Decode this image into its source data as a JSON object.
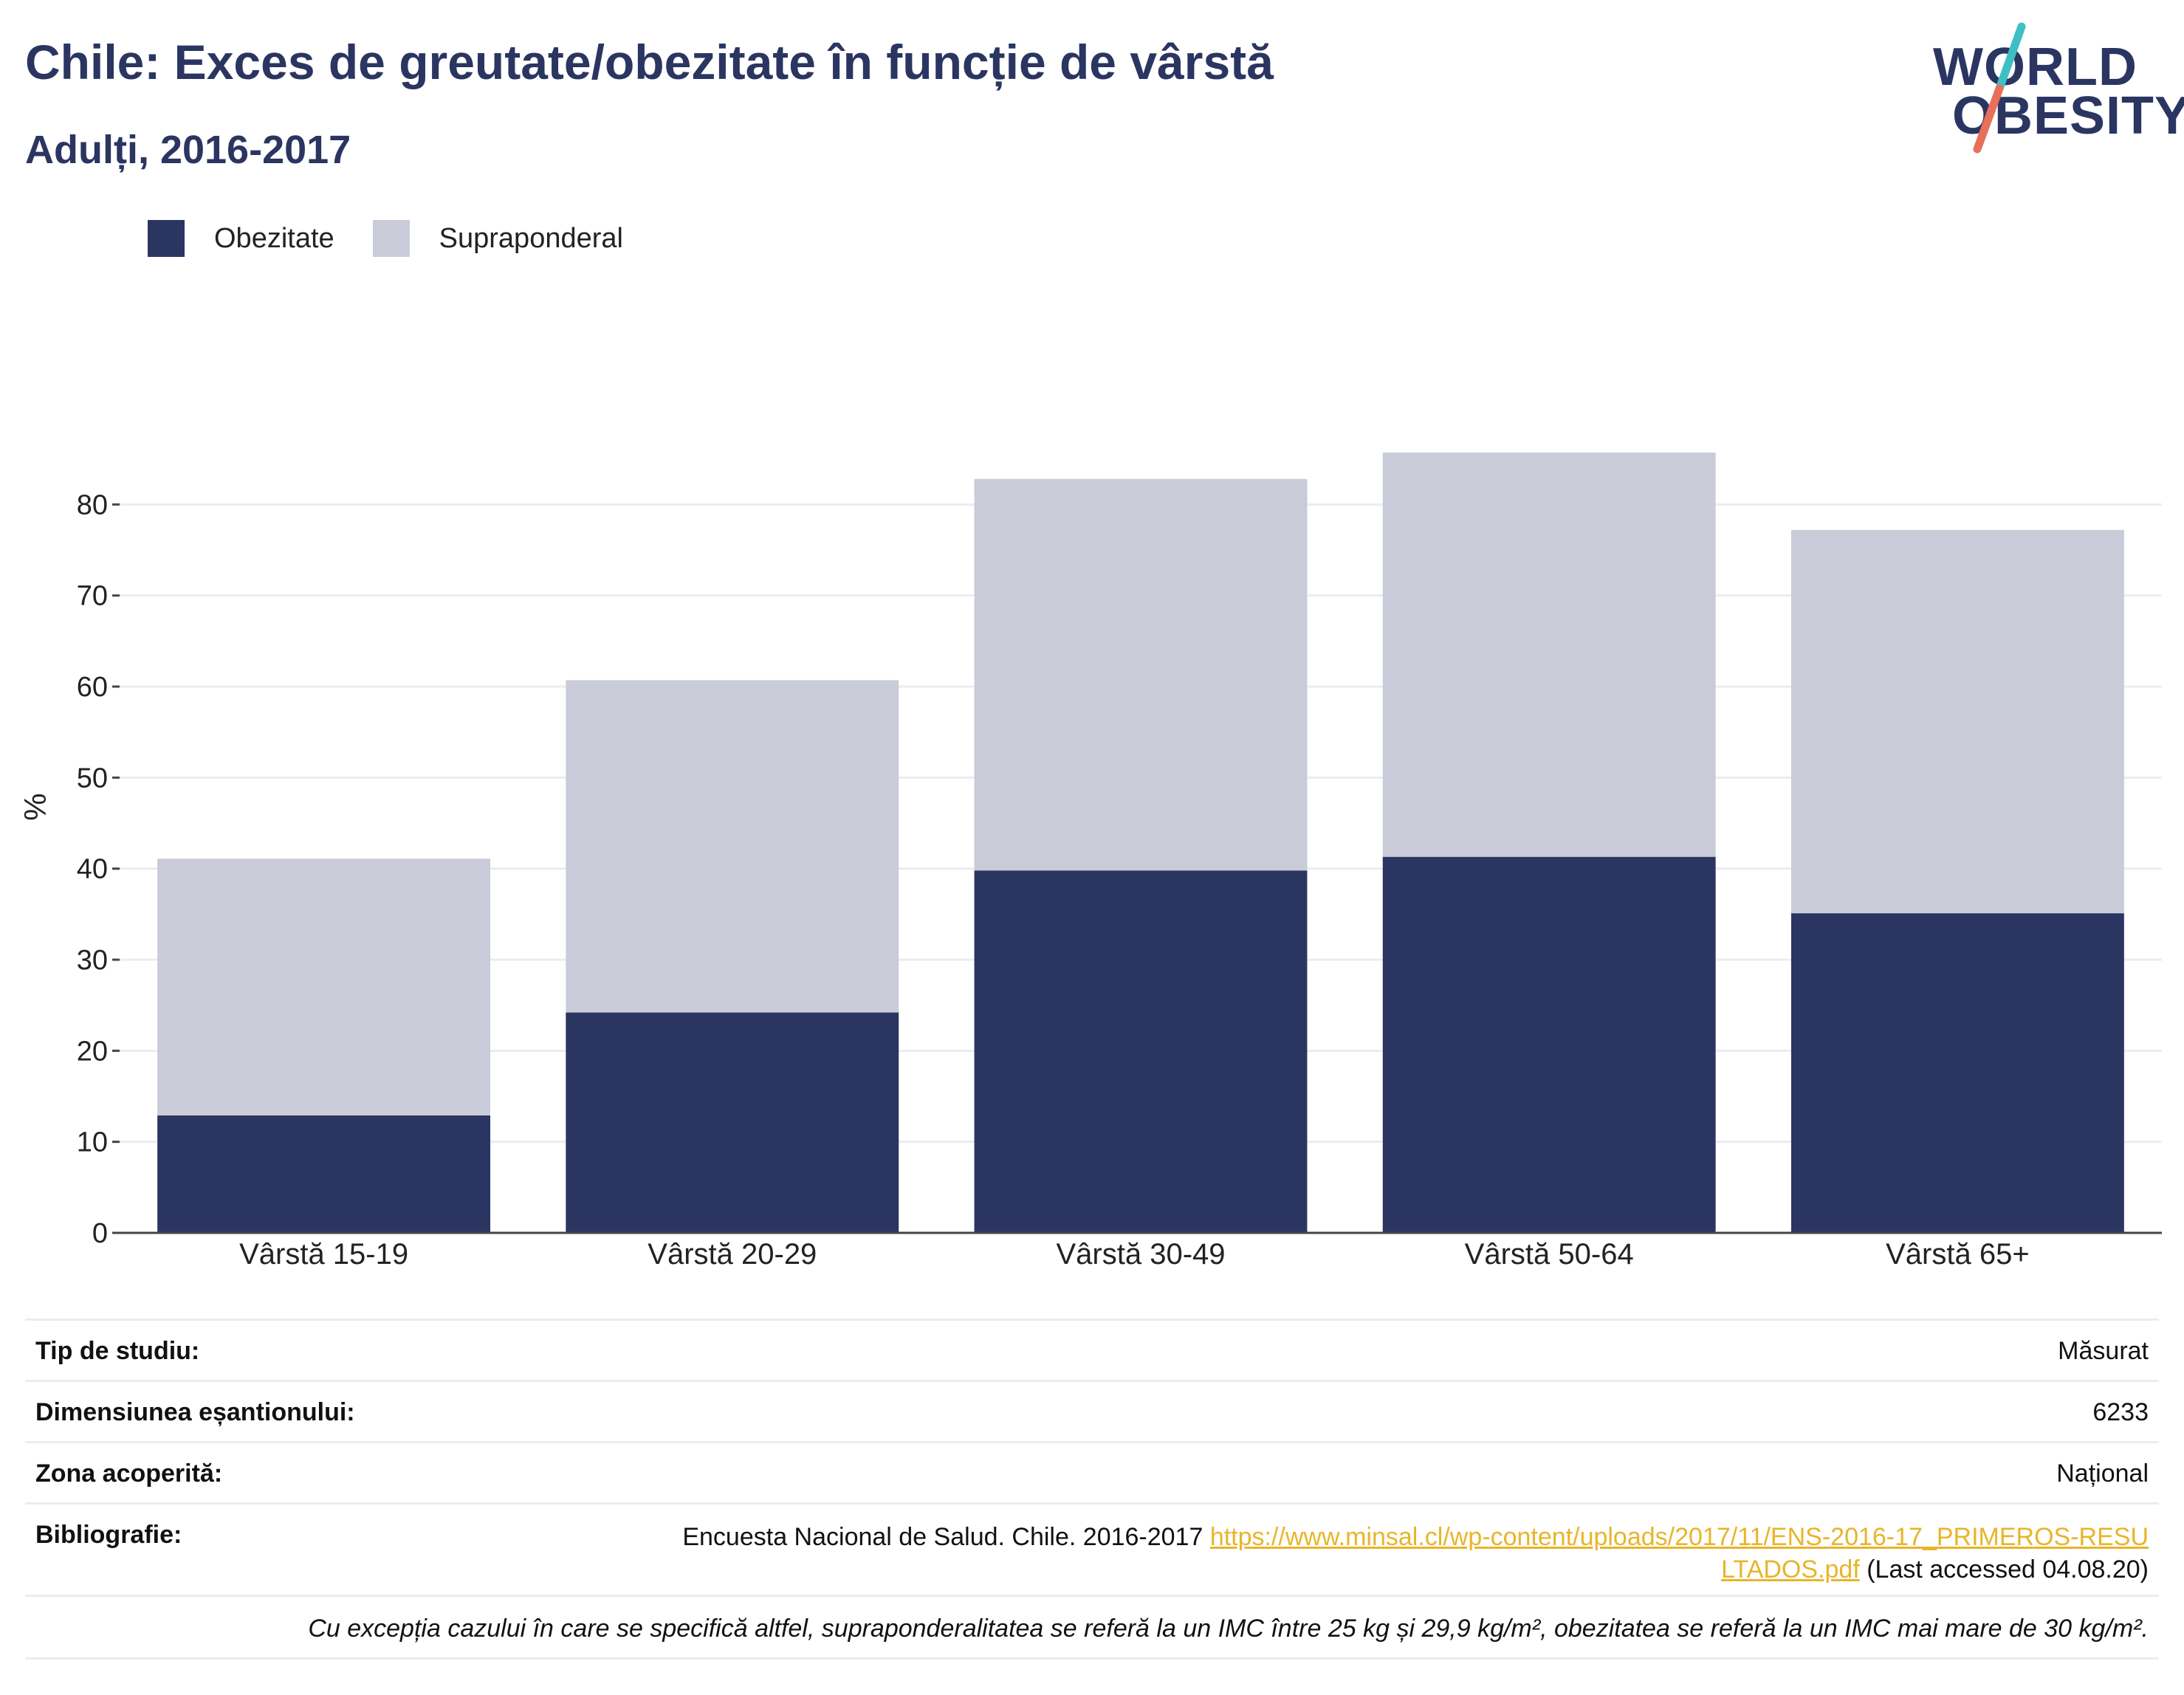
{
  "header": {
    "title": "Chile: Exces de greutate/obezitate în funcție de vârstă",
    "subtitle": "Adulți, 2016-2017"
  },
  "logo": {
    "line1": "WORLD",
    "line2": "OBESITY",
    "slash_colors": [
      "#3fbfc4",
      "#e8705a"
    ]
  },
  "legend": [
    {
      "name": "Obezitate",
      "color": "#2b3561"
    },
    {
      "name": "Supraponderal",
      "color": "#c9ccd8"
    }
  ],
  "chart_data": {
    "type": "bar",
    "stacked": true,
    "categories": [
      "Vârstă 15-19",
      "Vârstă 20-29",
      "Vârstă 30-49",
      "Vârstă 50-64",
      "Vârstă 65+"
    ],
    "series": [
      {
        "name": "Obezitate",
        "color": "#2b3561",
        "values": [
          12.9,
          24.2,
          39.8,
          41.3,
          35.1
        ]
      },
      {
        "name": "Supraponderal",
        "color": "#c9ccd8",
        "values": [
          28.2,
          36.5,
          43.0,
          44.4,
          42.1
        ]
      }
    ],
    "title": "Chile: Exces de greutate/obezitate în funcție de vârstă",
    "subtitle": "Adulți, 2016-2017",
    "xlabel": "",
    "ylabel": "%",
    "ylim": [
      0,
      90
    ],
    "yticks": [
      0,
      10,
      20,
      30,
      40,
      50,
      60,
      70,
      80
    ],
    "grid": true,
    "legend_position": "top-left"
  },
  "info": {
    "study_type": {
      "label": "Tip de studiu:",
      "value": "Măsurat"
    },
    "sample_size": {
      "label": "Dimensiunea eșantionului:",
      "value": "6233"
    },
    "area": {
      "label": "Zona acoperită:",
      "value": "Național"
    },
    "bibliography": {
      "label": "Bibliografie:",
      "text": "Encuesta Nacional de Salud. Chile. 2016-2017 ",
      "link": "https://www.minsal.cl/wp-content/uploads/2017/11/ENS-2016-17_PRIMEROS-RESULTADOS.pdf",
      "suffix": " (Last accessed 04.08.20)"
    },
    "footnote": "Cu excepția cazului în care se specifică altfel, supraponderalitatea se referă la un IMC între 25 kg și 29,9 kg/m², obezitatea se referă la un IMC mai mare de 30 kg/m²."
  }
}
